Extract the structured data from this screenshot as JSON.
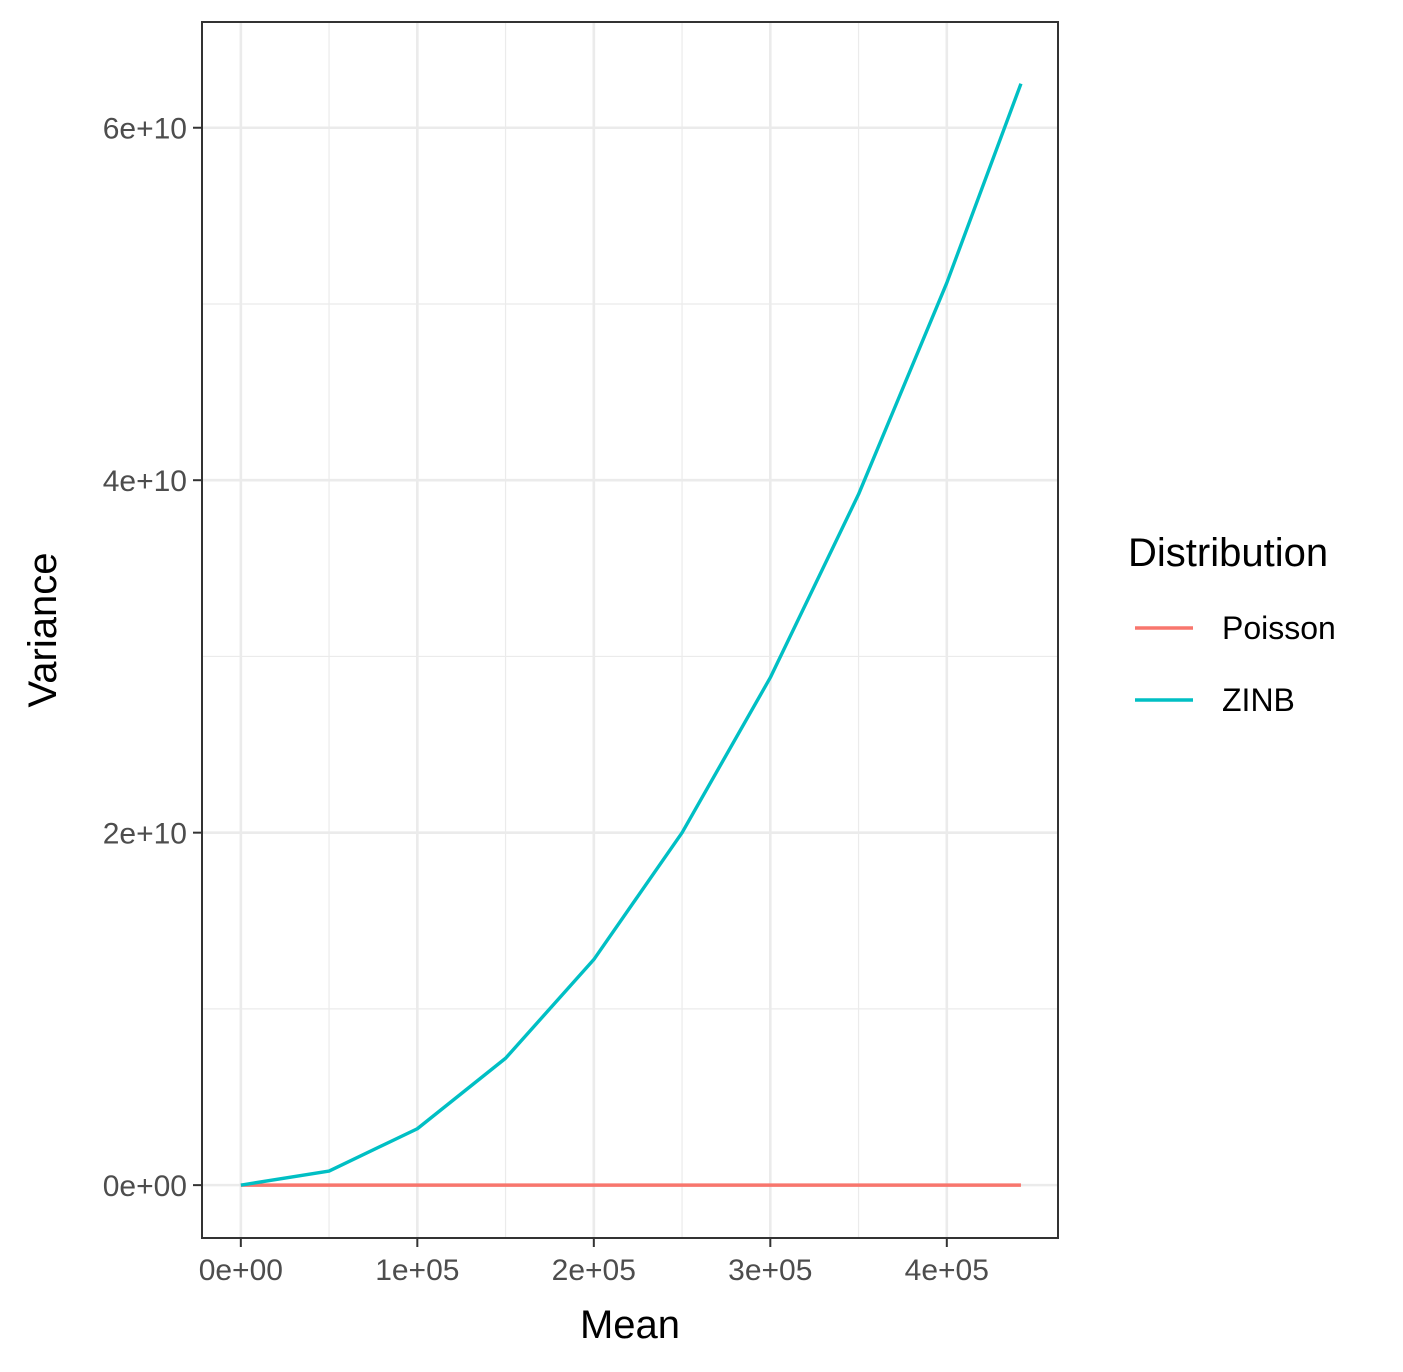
{
  "chart_data": {
    "type": "line",
    "xlabel": "Mean",
    "ylabel": "Variance",
    "x_ticks": [
      {
        "value": 0,
        "label": "0e+00"
      },
      {
        "value": 100000,
        "label": "1e+05"
      },
      {
        "value": 200000,
        "label": "2e+05"
      },
      {
        "value": 300000,
        "label": "3e+05"
      },
      {
        "value": 400000,
        "label": "4e+05"
      }
    ],
    "y_ticks": [
      {
        "value": 0,
        "label": "0e+00"
      },
      {
        "value": 20000000000,
        "label": "2e+10"
      },
      {
        "value": 40000000000,
        "label": "4e+10"
      },
      {
        "value": 60000000000,
        "label": "6e+10"
      }
    ],
    "xlim": [
      -22000,
      463000
    ],
    "ylim": [
      -3000000000,
      66000000000
    ],
    "grid": true,
    "legend": {
      "title": "Distribution",
      "placement": "right"
    },
    "series": [
      {
        "name": "Poisson",
        "color": "#F8766D",
        "x": [
          0,
          50000,
          100000,
          150000,
          200000,
          250000,
          300000,
          350000,
          400000,
          442000
        ],
        "y": [
          0,
          50000,
          100000,
          150000,
          200000,
          250000,
          300000,
          350000,
          400000,
          442000
        ]
      },
      {
        "name": "ZINB",
        "color": "#00BFC4",
        "x": [
          0,
          50000,
          100000,
          150000,
          200000,
          250000,
          300000,
          350000,
          400000,
          442000
        ],
        "y": [
          0,
          800000000,
          3200000000,
          7200000000,
          12800000000,
          20000000000,
          28800000000,
          39200000000,
          51200000000,
          62500000000
        ]
      }
    ]
  }
}
